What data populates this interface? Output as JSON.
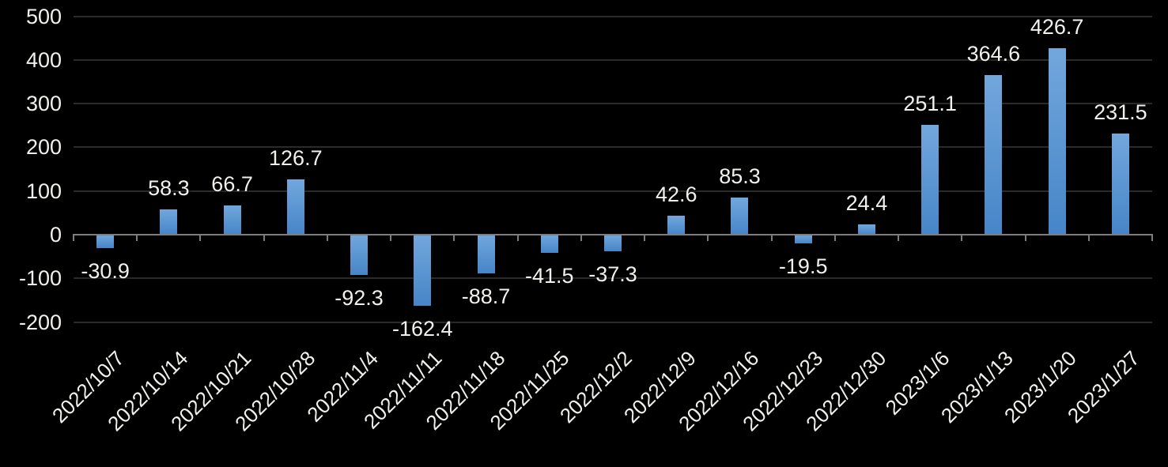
{
  "chart_data": {
    "type": "bar",
    "title": "",
    "xlabel": "",
    "ylabel": "",
    "categories": [
      "2022/10/7",
      "2022/10/14",
      "2022/10/21",
      "2022/10/28",
      "2022/11/4",
      "2022/11/11",
      "2022/11/18",
      "2022/11/25",
      "2022/12/2",
      "2022/12/9",
      "2022/12/16",
      "2022/12/23",
      "2022/12/30",
      "2023/1/6",
      "2023/1/13",
      "2023/1/20",
      "2023/1/27"
    ],
    "values": [
      -30.9,
      58.3,
      66.7,
      126.7,
      -92.3,
      -162.4,
      -88.7,
      -41.5,
      -37.3,
      42.6,
      85.3,
      -19.5,
      24.4,
      251.1,
      364.6,
      426.7,
      231.5
    ],
    "data_labels": [
      "-30.9",
      "58.3",
      "66.7",
      "126.7",
      "-92.3",
      "-162.4",
      "-88.7",
      "-41.5",
      "-37.3",
      "42.6",
      "85.3",
      "-19.5",
      "24.4",
      "251.1",
      "364.6",
      "426.7",
      "231.5"
    ],
    "ylim": [
      -200,
      500
    ],
    "yticks": [
      500,
      400,
      300,
      200,
      100,
      0,
      -100,
      -200
    ],
    "grid": true,
    "legend": false,
    "x_label_rotation_deg": 45,
    "colors": {
      "background": "#000000",
      "bar_gradient_top": "#72a7dc",
      "bar_gradient_bottom": "#4685c8",
      "gridline": "#2a2a2a",
      "axis": "#7d7d7d",
      "text": "#f2f0ec"
    }
  }
}
